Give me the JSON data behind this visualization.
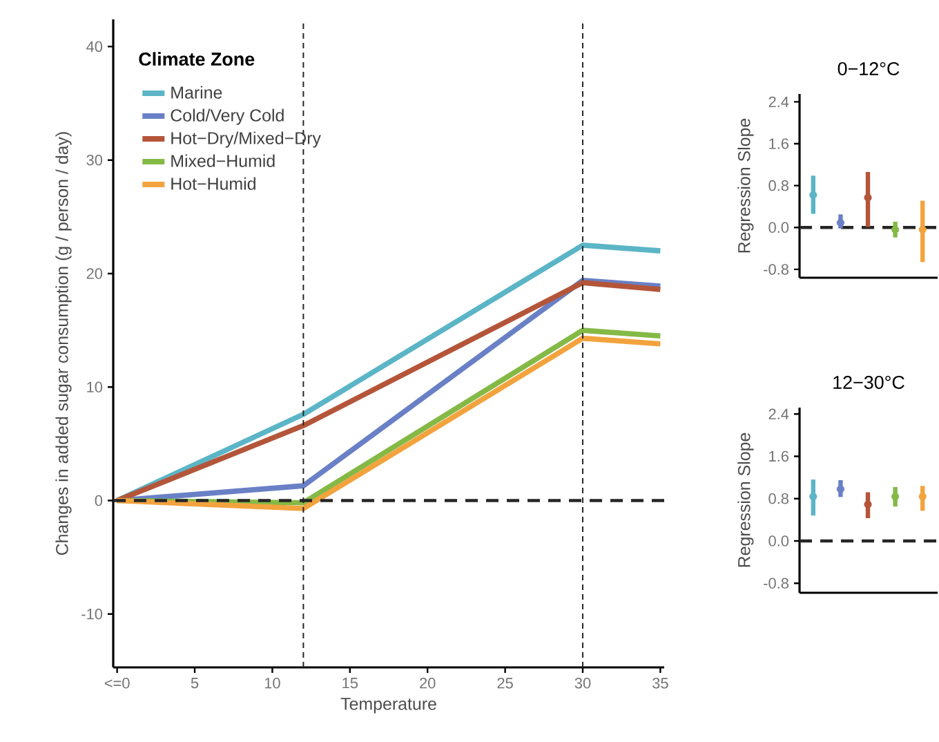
{
  "chart_data": [
    {
      "type": "line",
      "xlabel": "Temperature",
      "ylabel": "Changes in added sugar consumption (g / person / day)",
      "legend_title": "Climate Zone",
      "legend": "top left",
      "marker": "none",
      "line_style": "solid",
      "x": [
        0,
        12,
        30,
        35
      ],
      "series": [
        {
          "name": "Marine",
          "color": "#5bb5c6",
          "values": [
            0,
            7.6,
            22.5,
            22.0
          ]
        },
        {
          "name": "Cold/Very Cold",
          "color": "#6a80c6",
          "values": [
            0,
            1.3,
            19.4,
            18.9
          ]
        },
        {
          "name": "Hot−Dry/Mixed−Dry",
          "color": "#b4553a",
          "values": [
            0,
            6.6,
            19.2,
            18.6
          ]
        },
        {
          "name": "Mixed−Humid",
          "color": "#84b946",
          "values": [
            0,
            -0.2,
            15.0,
            14.5
          ]
        },
        {
          "name": "Hot−Humid",
          "color": "#f2a33e",
          "values": [
            0,
            -0.7,
            14.3,
            13.8
          ]
        }
      ],
      "xlim": [
        -0.25,
        35.25
      ],
      "ylim": [
        -14.7,
        42.4
      ],
      "xticks": [
        {
          "value": 0,
          "label": "<=0"
        },
        5,
        10,
        15,
        20,
        25,
        30,
        35
      ],
      "yticks": [
        -10,
        0,
        10,
        20,
        30,
        40
      ],
      "ref_lines": [
        {
          "axis": "x",
          "value": 12,
          "line_style": "dashed"
        },
        {
          "axis": "x",
          "value": 30,
          "line_style": "dashed"
        },
        {
          "axis": "y",
          "value": 0,
          "line_style": "dashed"
        }
      ]
    },
    {
      "type": "scatter",
      "title": "0−12°C",
      "ylabel": "Regression Slope",
      "marker": "circle",
      "tick_labels": "y",
      "categories": [
        null,
        null,
        null,
        null,
        null
      ],
      "values": [
        0.62,
        0.09,
        0.57,
        -0.04,
        -0.04
      ],
      "errors": [
        [
          0.26,
          0.99
        ],
        [
          -0.02,
          0.25
        ],
        [
          0.01,
          1.06
        ],
        [
          -0.19,
          0.11
        ],
        [
          -0.66,
          0.51
        ]
      ],
      "colors": [
        "#5bb5c6",
        "#6a80c6",
        "#b4553a",
        "#84b946",
        "#f2a33e"
      ],
      "ylim": [
        -0.96,
        2.55
      ],
      "yticks": [
        -0.8,
        {
          "value": 0,
          "label": "0.0"
        },
        0.8,
        1.6,
        2.4
      ],
      "ref_lines": [
        {
          "axis": "y",
          "value": 0,
          "line_style": "dashed"
        }
      ]
    },
    {
      "type": "scatter",
      "title": "12−30°C",
      "ylabel": "Regression Slope",
      "marker": "circle",
      "tick_labels": "y",
      "categories": [
        null,
        null,
        null,
        null,
        null
      ],
      "values": [
        0.84,
        0.98,
        0.69,
        0.84,
        0.84
      ],
      "errors": [
        [
          0.48,
          1.16
        ],
        [
          0.83,
          1.15
        ],
        [
          0.43,
          0.92
        ],
        [
          0.65,
          1.02
        ],
        [
          0.57,
          1.04
        ]
      ],
      "colors": [
        "#5bb5c6",
        "#6a80c6",
        "#b4553a",
        "#84b946",
        "#f2a33e"
      ],
      "ylim": [
        -0.98,
        2.52
      ],
      "yticks": [
        -0.8,
        {
          "value": 0,
          "label": "0.0"
        },
        0.8,
        1.6,
        2.4
      ],
      "ref_lines": [
        {
          "axis": "y",
          "value": 0,
          "line_style": "dashed"
        }
      ]
    }
  ]
}
